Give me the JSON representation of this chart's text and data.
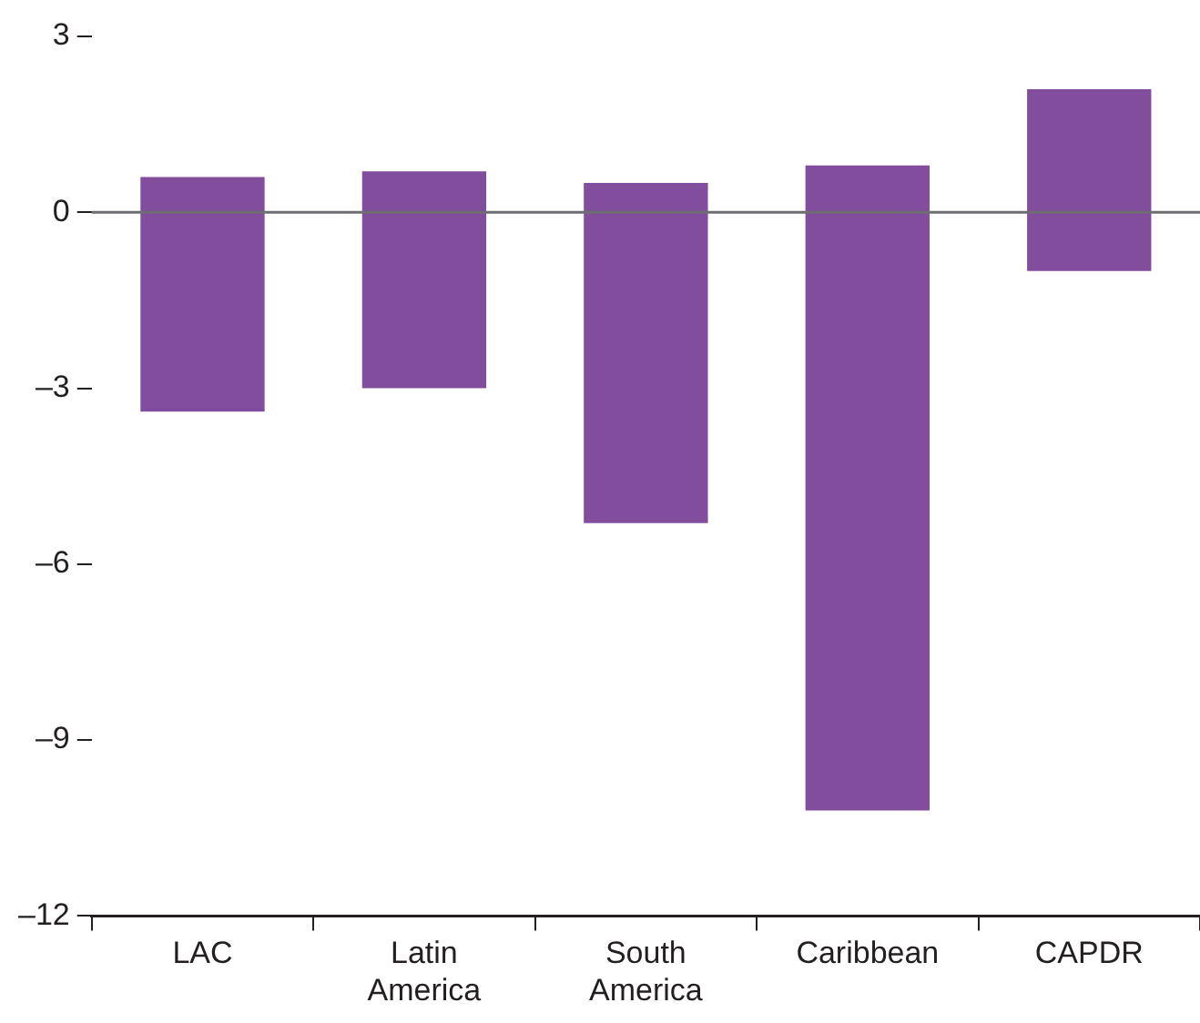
{
  "chart_data": {
    "type": "bar",
    "categories": [
      "LAC",
      "Latin America",
      "South America",
      "Caribbean",
      "CAPDR"
    ],
    "base": [
      -3.4,
      -3.0,
      -5.3,
      -10.2,
      -1.0
    ],
    "values": [
      4.0,
      3.7,
      5.8,
      11.0,
      3.1
    ],
    "color": "#834d9e",
    "ylim": [
      -12,
      3
    ],
    "yticks": [
      {
        "value": -12,
        "label": "–12"
      },
      {
        "value": -9,
        "label": "–9"
      },
      {
        "value": -6,
        "label": "–6"
      },
      {
        "value": -3,
        "label": "–3"
      },
      0,
      3
    ],
    "ref_lines": [
      {
        "axis": "y",
        "value": 0,
        "color": "#6d6e71"
      }
    ],
    "grid": false,
    "legend": false
  }
}
